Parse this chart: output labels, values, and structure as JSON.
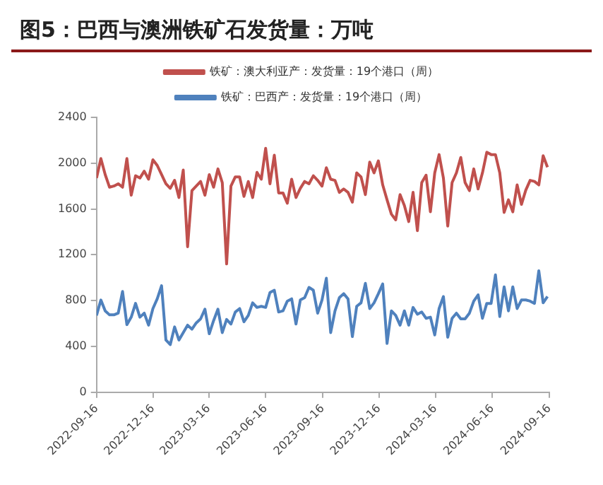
{
  "chart_data": {
    "type": "line",
    "title": "图5：巴西与澳洲铁矿石发货量：万吨",
    "x": [
      "2022-09-16",
      "2022-09-23",
      "2022-09-30",
      "2022-10-07",
      "2022-10-14",
      "2022-10-21",
      "2022-10-28",
      "2022-11-04",
      "2022-11-11",
      "2022-11-18",
      "2022-11-25",
      "2022-12-02",
      "2022-12-09",
      "2022-12-16",
      "2022-12-23",
      "2022-12-30",
      "2023-01-06",
      "2023-01-13",
      "2023-01-20",
      "2023-01-27",
      "2023-02-03",
      "2023-02-10",
      "2023-02-17",
      "2023-02-24",
      "2023-03-03",
      "2023-03-10",
      "2023-03-17",
      "2023-03-24",
      "2023-03-31",
      "2023-04-07",
      "2023-04-14",
      "2023-04-21",
      "2023-04-28",
      "2023-05-05",
      "2023-05-12",
      "2023-05-19",
      "2023-05-26",
      "2023-06-02",
      "2023-06-09",
      "2023-06-16",
      "2023-06-23",
      "2023-06-30",
      "2023-07-07",
      "2023-07-14",
      "2023-07-21",
      "2023-07-28",
      "2023-08-04",
      "2023-08-11",
      "2023-08-18",
      "2023-08-25",
      "2023-09-01",
      "2023-09-08",
      "2023-09-15",
      "2023-09-22",
      "2023-09-29",
      "2023-10-06",
      "2023-10-13",
      "2023-10-20",
      "2023-10-27",
      "2023-11-03",
      "2023-11-10",
      "2023-11-17",
      "2023-11-24",
      "2023-12-01",
      "2023-12-08",
      "2023-12-15",
      "2023-12-22",
      "2023-12-29",
      "2024-01-05",
      "2024-01-12",
      "2024-01-19",
      "2024-01-26",
      "2024-02-02",
      "2024-02-09",
      "2024-02-16",
      "2024-02-23",
      "2024-03-01",
      "2024-03-08",
      "2024-03-15",
      "2024-03-22",
      "2024-03-29",
      "2024-04-05",
      "2024-04-12",
      "2024-04-19",
      "2024-04-26",
      "2024-05-03",
      "2024-05-10",
      "2024-05-17",
      "2024-05-24",
      "2024-05-31",
      "2024-06-07",
      "2024-06-14",
      "2024-06-21",
      "2024-06-28",
      "2024-07-05",
      "2024-07-12",
      "2024-07-19",
      "2024-07-26",
      "2024-08-02",
      "2024-08-09",
      "2024-08-16",
      "2024-08-23",
      "2024-08-30",
      "2024-09-06",
      "2024-09-13"
    ],
    "series": [
      {
        "name": "铁矿：澳大利亚产：发货量：19个港口（周）",
        "color": "#c0504d",
        "values": [
          1870,
          2040,
          1900,
          1790,
          1800,
          1820,
          1790,
          2040,
          1720,
          1890,
          1870,
          1930,
          1860,
          2030,
          1980,
          1900,
          1820,
          1780,
          1850,
          1700,
          1940,
          1270,
          1760,
          1800,
          1840,
          1720,
          1900,
          1790,
          1950,
          1830,
          1120,
          1800,
          1880,
          1880,
          1710,
          1840,
          1700,
          1920,
          1860,
          2130,
          1820,
          2070,
          1740,
          1740,
          1650,
          1860,
          1700,
          1780,
          1840,
          1820,
          1890,
          1850,
          1800,
          1960,
          1860,
          1850,
          1745,
          1775,
          1745,
          1660,
          1915,
          1880,
          1725,
          2010,
          1915,
          2020,
          1810,
          1680,
          1555,
          1505,
          1725,
          1630,
          1490,
          1745,
          1410,
          1830,
          1895,
          1575,
          1915,
          2075,
          1870,
          1450,
          1830,
          1915,
          2050,
          1830,
          1760,
          1950,
          1775,
          1915,
          2095,
          2075,
          2075,
          1915,
          1570,
          1680,
          1575,
          1810,
          1640,
          1765,
          1850,
          1840,
          1810,
          2065,
          1965
        ]
      },
      {
        "name": "铁矿：巴西产：发货量：19个港口（周）",
        "color": "#4f81bd",
        "values": [
          670,
          805,
          710,
          675,
          675,
          690,
          880,
          590,
          655,
          775,
          655,
          690,
          585,
          730,
          815,
          930,
          455,
          415,
          570,
          455,
          520,
          585,
          550,
          605,
          640,
          725,
          510,
          625,
          725,
          520,
          635,
          595,
          700,
          730,
          615,
          670,
          780,
          740,
          750,
          740,
          870,
          890,
          700,
          710,
          795,
          815,
          595,
          805,
          825,
          915,
          890,
          690,
          805,
          995,
          520,
          710,
          825,
          860,
          815,
          485,
          750,
          780,
          950,
          730,
          780,
          860,
          945,
          425,
          710,
          670,
          585,
          710,
          585,
          740,
          680,
          700,
          645,
          655,
          500,
          730,
          835,
          480,
          645,
          690,
          640,
          640,
          690,
          795,
          850,
          645,
          775,
          775,
          1025,
          660,
          920,
          710,
          920,
          730,
          805,
          805,
          795,
          775,
          1060,
          780,
          835
        ]
      }
    ],
    "xlim": [
      "2022-09-16",
      "2024-09-16"
    ],
    "xticks": [
      "2022-09-16",
      "2022-12-16",
      "2023-03-16",
      "2023-06-16",
      "2023-09-16",
      "2023-12-16",
      "2024-03-16",
      "2024-06-16",
      "2024-09-16"
    ],
    "ylim": [
      0,
      2400
    ],
    "yticks": [
      0,
      400,
      800,
      1200,
      1600,
      2000,
      2400
    ],
    "grid": false,
    "legend": "top",
    "marker": "none",
    "line_style": "solid"
  }
}
